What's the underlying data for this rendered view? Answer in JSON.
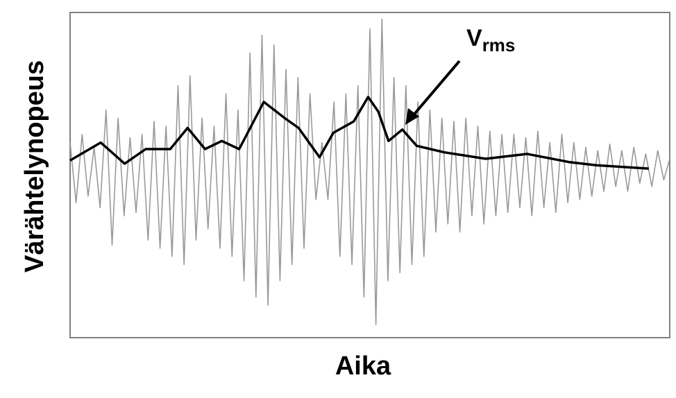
{
  "chart_data": {
    "type": "line",
    "x_label": "Aika",
    "y_label": "Värähtelynopeus",
    "annotation": {
      "text": "V",
      "subscript": "rms"
    },
    "xlim": [
      0,
      100
    ],
    "ylim": [
      -1.05,
      0.95
    ],
    "grid": false,
    "series": [
      {
        "color": "#999999",
        "width": 1.6,
        "x": [
          0,
          1,
          2,
          3,
          4,
          5,
          6,
          7,
          8,
          9,
          10,
          11,
          12,
          13,
          14,
          15,
          16,
          17,
          18,
          19,
          20,
          21,
          22,
          23,
          24,
          25,
          26,
          27,
          28,
          29,
          30,
          31,
          32,
          33,
          34,
          35,
          36,
          37,
          38,
          39,
          40,
          41,
          42,
          43,
          44,
          45,
          46,
          47,
          48,
          49,
          50,
          51,
          52,
          53,
          54,
          55,
          56,
          57,
          58,
          59,
          60,
          61,
          62,
          63,
          64,
          65,
          66,
          67,
          68,
          69,
          70,
          71,
          72,
          73,
          74,
          75,
          76,
          77,
          78,
          79,
          80,
          81,
          82,
          83,
          84,
          85,
          86,
          87,
          88,
          89,
          90,
          91,
          92,
          93,
          94,
          95,
          96,
          97,
          98,
          99,
          100
        ],
        "values": [
          0.15,
          -0.22,
          0.2,
          -0.18,
          0.12,
          -0.25,
          0.35,
          -0.48,
          0.3,
          -0.3,
          0.18,
          -0.28,
          0.2,
          -0.45,
          0.28,
          -0.5,
          0.25,
          -0.55,
          0.5,
          -0.6,
          0.56,
          -0.45,
          0.3,
          -0.38,
          0.25,
          -0.5,
          0.45,
          -0.55,
          0.35,
          -0.7,
          0.7,
          -0.8,
          0.81,
          -0.85,
          0.75,
          -0.7,
          0.6,
          -0.6,
          0.55,
          -0.5,
          0.45,
          -0.2,
          0.15,
          -0.2,
          0.4,
          -0.55,
          0.45,
          -0.6,
          0.5,
          -0.8,
          0.85,
          -0.97,
          0.91,
          -0.7,
          0.55,
          -0.65,
          0.5,
          -0.6,
          0.4,
          -0.55,
          0.35,
          -0.4,
          0.3,
          -0.35,
          0.28,
          -0.4,
          0.3,
          -0.3,
          0.25,
          -0.35,
          0.22,
          -0.3,
          0.2,
          -0.28,
          0.2,
          -0.25,
          0.18,
          -0.3,
          0.22,
          -0.25,
          0.15,
          -0.28,
          0.2,
          -0.22,
          0.15,
          -0.2,
          0.12,
          -0.18,
          0.1,
          -0.15,
          0.14,
          -0.12,
          0.1,
          -0.15,
          0.12,
          -0.1,
          0.08,
          -0.12,
          0.1,
          -0.08,
          0.05
        ]
      },
      {
        "color": "#000000",
        "width": 3.5,
        "x": [
          0,
          5.1,
          9.1,
          12.6,
          16.7,
          19.6,
          22.5,
          25.3,
          28.2,
          32.3,
          35.8,
          38.1,
          41.6,
          43.9,
          47.3,
          49.7,
          51.4,
          53.1,
          55.4,
          57.8,
          62.4,
          69.3,
          76.2,
          83.2,
          87.8,
          96.5
        ],
        "values": [
          0.04,
          0.15,
          0.02,
          0.11,
          0.11,
          0.24,
          0.11,
          0.16,
          0.11,
          0.4,
          0.3,
          0.24,
          0.06,
          0.21,
          0.28,
          0.43,
          0.34,
          0.16,
          0.23,
          0.13,
          0.09,
          0.05,
          0.08,
          0.03,
          0.01,
          -0.01
        ]
      }
    ]
  }
}
